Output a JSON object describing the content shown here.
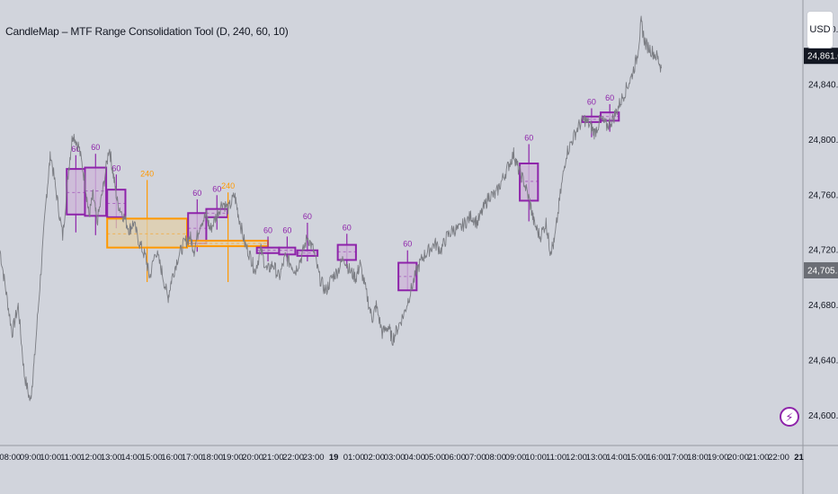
{
  "indicator": {
    "title": "CandleMap – MTF Range Consolidation Tool (D, 240, 60, 10)"
  },
  "currency_button": {
    "label": "USD"
  },
  "bolt_icon": "lightning-bolt-icon",
  "colors": {
    "background": "#d1d4dc",
    "price_line": "#7a7c82",
    "box_60_border": "#8e24aa",
    "box_60_fill": "#cdb6d8",
    "box_240_border": "#ff9800",
    "box_240_fill": "#e0cfa9",
    "current_price_bg": "#131722",
    "level_price_bg": "#6b6e75"
  },
  "chart_data": {
    "type": "line",
    "y_axis": {
      "range": [
        24585,
        24895
      ],
      "ticks": [
        {
          "value": 24880,
          "label": "24,880.00"
        },
        {
          "value": 24840,
          "label": "24,840.00"
        },
        {
          "value": 24800,
          "label": "24,800.00"
        },
        {
          "value": 24760,
          "label": "24,760.00"
        },
        {
          "value": 24720,
          "label": "24,720.00"
        },
        {
          "value": 24680,
          "label": "24,680.00"
        },
        {
          "value": 24640,
          "label": "24,640.00"
        },
        {
          "value": 24600,
          "label": "24,600.00"
        }
      ],
      "price_labels": [
        {
          "value": 24861.0,
          "label": "24,861.00",
          "kind": "current"
        },
        {
          "value": 24705.5,
          "label": "24,705.50",
          "kind": "level"
        }
      ]
    },
    "x_axis": {
      "range": [
        7.5,
        47.2
      ],
      "ticks": [
        {
          "x": 8,
          "label": "08:00"
        },
        {
          "x": 9,
          "label": "09:00"
        },
        {
          "x": 10,
          "label": "10:00"
        },
        {
          "x": 11,
          "label": "11:00"
        },
        {
          "x": 12,
          "label": "12:00"
        },
        {
          "x": 13,
          "label": "13:00"
        },
        {
          "x": 14,
          "label": "14:00"
        },
        {
          "x": 15,
          "label": "15:00"
        },
        {
          "x": 16,
          "label": "16:00"
        },
        {
          "x": 17,
          "label": "17:00"
        },
        {
          "x": 18,
          "label": "18:00"
        },
        {
          "x": 19,
          "label": "19:00"
        },
        {
          "x": 20,
          "label": "20:00"
        },
        {
          "x": 21,
          "label": "21:00"
        },
        {
          "x": 22,
          "label": "22:00"
        },
        {
          "x": 23,
          "label": "23:00"
        },
        {
          "x": 24,
          "label": "19",
          "bold": true
        },
        {
          "x": 25,
          "label": "01:00"
        },
        {
          "x": 26,
          "label": "02:00"
        },
        {
          "x": 27,
          "label": "03:00"
        },
        {
          "x": 28,
          "label": "04:00"
        },
        {
          "x": 29,
          "label": "05:00"
        },
        {
          "x": 30,
          "label": "06:00"
        },
        {
          "x": 31,
          "label": "07:00"
        },
        {
          "x": 32,
          "label": "08:00"
        },
        {
          "x": 33,
          "label": "09:00"
        },
        {
          "x": 34,
          "label": "10:00"
        },
        {
          "x": 35,
          "label": "11:00"
        },
        {
          "x": 36,
          "label": "12:00"
        },
        {
          "x": 37,
          "label": "13:00"
        },
        {
          "x": 38,
          "label": "14:00"
        },
        {
          "x": 39,
          "label": "15:00"
        },
        {
          "x": 40,
          "label": "16:00"
        },
        {
          "x": 41,
          "label": "17:00"
        },
        {
          "x": 42,
          "label": "18:00"
        },
        {
          "x": 43,
          "label": "19:00"
        },
        {
          "x": 44,
          "label": "20:00"
        },
        {
          "x": 45,
          "label": "21:00"
        },
        {
          "x": 46,
          "label": "22:00"
        },
        {
          "x": 47,
          "label": "21",
          "bold": true
        }
      ]
    },
    "price_series": [
      [
        7.5,
        24720
      ],
      [
        7.8,
        24690
      ],
      [
        8.1,
        24660
      ],
      [
        8.4,
        24680
      ],
      [
        8.7,
        24630
      ],
      [
        9.0,
        24610
      ],
      [
        9.2,
        24640
      ],
      [
        9.5,
        24700
      ],
      [
        9.8,
        24760
      ],
      [
        10.0,
        24790
      ],
      [
        10.3,
        24760
      ],
      [
        10.6,
        24730
      ],
      [
        10.9,
        24780
      ],
      [
        11.1,
        24805
      ],
      [
        11.4,
        24795
      ],
      [
        11.7,
        24770
      ],
      [
        11.9,
        24745
      ],
      [
        12.1,
        24760
      ],
      [
        12.3,
        24740
      ],
      [
        12.6,
        24765
      ],
      [
        12.9,
        24795
      ],
      [
        13.1,
        24775
      ],
      [
        13.3,
        24755
      ],
      [
        13.6,
        24745
      ],
      [
        13.9,
        24735
      ],
      [
        14.1,
        24740
      ],
      [
        14.4,
        24725
      ],
      [
        14.7,
        24715
      ],
      [
        14.9,
        24700
      ],
      [
        15.2,
        24720
      ],
      [
        15.5,
        24705
      ],
      [
        15.8,
        24685
      ],
      [
        16.0,
        24700
      ],
      [
        16.3,
        24715
      ],
      [
        16.6,
        24725
      ],
      [
        16.9,
        24730
      ],
      [
        17.1,
        24720
      ],
      [
        17.4,
        24740
      ],
      [
        17.7,
        24745
      ],
      [
        17.9,
        24735
      ],
      [
        18.2,
        24745
      ],
      [
        18.5,
        24755
      ],
      [
        18.8,
        24750
      ],
      [
        19.1,
        24760
      ],
      [
        19.3,
        24745
      ],
      [
        19.6,
        24725
      ],
      [
        19.9,
        24715
      ],
      [
        20.1,
        24705
      ],
      [
        20.4,
        24720
      ],
      [
        20.7,
        24705
      ],
      [
        21.0,
        24710
      ],
      [
        21.3,
        24700
      ],
      [
        21.6,
        24715
      ],
      [
        21.9,
        24710
      ],
      [
        22.1,
        24705
      ],
      [
        22.4,
        24715
      ],
      [
        22.7,
        24730
      ],
      [
        23.0,
        24720
      ],
      [
        23.3,
        24700
      ],
      [
        23.6,
        24690
      ],
      [
        23.9,
        24700
      ],
      [
        24.2,
        24705
      ],
      [
        24.5,
        24715
      ],
      [
        24.8,
        24705
      ],
      [
        25.1,
        24700
      ],
      [
        25.3,
        24710
      ],
      [
        25.6,
        24690
      ],
      [
        25.9,
        24670
      ],
      [
        26.1,
        24680
      ],
      [
        26.4,
        24660
      ],
      [
        26.7,
        24665
      ],
      [
        26.9,
        24655
      ],
      [
        27.2,
        24665
      ],
      [
        27.5,
        24675
      ],
      [
        27.8,
        24690
      ],
      [
        28.1,
        24705
      ],
      [
        28.4,
        24715
      ],
      [
        28.7,
        24720
      ],
      [
        29.0,
        24725
      ],
      [
        29.3,
        24720
      ],
      [
        29.6,
        24730
      ],
      [
        29.9,
        24735
      ],
      [
        30.2,
        24735
      ],
      [
        30.5,
        24740
      ],
      [
        30.8,
        24745
      ],
      [
        31.1,
        24740
      ],
      [
        31.4,
        24750
      ],
      [
        31.7,
        24760
      ],
      [
        32.0,
        24760
      ],
      [
        32.3,
        24770
      ],
      [
        32.6,
        24780
      ],
      [
        32.9,
        24790
      ],
      [
        33.1,
        24780
      ],
      [
        33.4,
        24770
      ],
      [
        33.7,
        24755
      ],
      [
        33.9,
        24740
      ],
      [
        34.2,
        24730
      ],
      [
        34.5,
        24740
      ],
      [
        34.7,
        24720
      ],
      [
        34.9,
        24725
      ],
      [
        35.2,
        24760
      ],
      [
        35.5,
        24790
      ],
      [
        35.8,
        24800
      ],
      [
        36.1,
        24810
      ],
      [
        36.4,
        24815
      ],
      [
        36.7,
        24810
      ],
      [
        36.9,
        24805
      ],
      [
        37.2,
        24815
      ],
      [
        37.5,
        24810
      ],
      [
        37.8,
        24815
      ],
      [
        38.1,
        24825
      ],
      [
        38.4,
        24835
      ],
      [
        38.7,
        24845
      ],
      [
        39.0,
        24860
      ],
      [
        39.2,
        24885
      ],
      [
        39.4,
        24870
      ],
      [
        39.7,
        24865
      ],
      [
        40.0,
        24860
      ],
      [
        40.2,
        24852
      ]
    ],
    "boxes": [
      {
        "label": "60",
        "tf": "60",
        "x0": 10.8,
        "x1": 11.7,
        "y_top": 24779,
        "y_bot": 24746,
        "wick_top": 24789,
        "wick_bot": 24733,
        "mid": 24762
      },
      {
        "label": "60",
        "tf": "60",
        "x0": 11.7,
        "x1": 12.75,
        "y_top": 24780,
        "y_bot": 24745,
        "wick_top": 24790,
        "wick_bot": 24731,
        "mid": 24763
      },
      {
        "label": "60",
        "tf": "60",
        "x0": 12.8,
        "x1": 13.7,
        "y_top": 24764,
        "y_bot": 24744,
        "wick_top": 24775,
        "wick_bot": 24736,
        "mid": 24754
      },
      {
        "label": "240",
        "tf": "240",
        "x0": 12.8,
        "x1": 16.75,
        "y_top": 24743,
        "y_bot": 24722,
        "wick_top": 24771,
        "wick_bot": 24697,
        "mid": 24732
      },
      {
        "label": "60",
        "tf": "60",
        "x0": 16.8,
        "x1": 17.7,
        "y_top": 24747,
        "y_bot": 24725,
        "wick_top": 24757,
        "wick_bot": 24719,
        "mid": 24736
      },
      {
        "label": "60",
        "tf": "60",
        "x0": 17.7,
        "x1": 18.75,
        "y_top": 24750,
        "y_bot": 24744,
        "wick_top": 24760,
        "wick_bot": 24735,
        "mid": 24747
      },
      {
        "label": "240",
        "tf": "240",
        "x0": 16.8,
        "x1": 20.75,
        "y_top": 24727,
        "y_bot": 24723,
        "wick_top": 24762,
        "wick_bot": 24697,
        "mid": 24725
      },
      {
        "label": "60",
        "tf": "60",
        "x0": 20.2,
        "x1": 21.3,
        "y_top": 24722,
        "y_bot": 24718,
        "wick_top": 24730,
        "wick_bot": 24712,
        "mid": 24720
      },
      {
        "label": "60",
        "tf": "60",
        "x0": 21.3,
        "x1": 22.1,
        "y_top": 24722,
        "y_bot": 24717,
        "wick_top": 24730,
        "wick_bot": 24712,
        "mid": 24720
      },
      {
        "label": "60",
        "tf": "60",
        "x0": 22.2,
        "x1": 23.2,
        "y_top": 24720,
        "y_bot": 24716,
        "wick_top": 24740,
        "wick_bot": 24712,
        "mid": 24718
      },
      {
        "label": "60",
        "tf": "60",
        "x0": 24.2,
        "x1": 25.1,
        "y_top": 24724,
        "y_bot": 24713,
        "wick_top": 24732,
        "wick_bot": 24707,
        "mid": 24719
      },
      {
        "label": "60",
        "tf": "60",
        "x0": 27.2,
        "x1": 28.1,
        "y_top": 24711,
        "y_bot": 24691,
        "wick_top": 24720,
        "wick_bot": 24691,
        "mid": 24701
      },
      {
        "label": "60",
        "tf": "60",
        "x0": 33.2,
        "x1": 34.1,
        "y_top": 24783,
        "y_bot": 24756,
        "wick_top": 24797,
        "wick_bot": 24741,
        "mid": 24770
      },
      {
        "label": "60",
        "tf": "60",
        "x0": 36.3,
        "x1": 37.2,
        "y_top": 24817,
        "y_bot": 24813,
        "wick_top": 24823,
        "wick_bot": 24802,
        "mid": 24815
      },
      {
        "label": "60",
        "tf": "60",
        "x0": 37.2,
        "x1": 38.1,
        "y_top": 24820,
        "y_bot": 24814,
        "wick_top": 24826,
        "wick_bot": 24806,
        "mid": 24817
      }
    ]
  }
}
